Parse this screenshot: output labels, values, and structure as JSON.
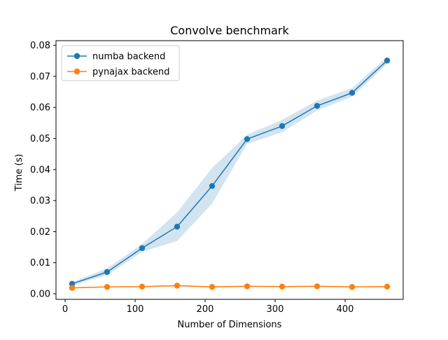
{
  "chart_data": {
    "type": "line",
    "title": "Convolve benchmark",
    "xlabel": "Number of Dimensions",
    "ylabel": "Time (s)",
    "xlim": [
      -13,
      483
    ],
    "ylim": [
      -0.0018,
      0.0815
    ],
    "x_ticks": [
      0,
      100,
      200,
      300,
      400
    ],
    "y_ticks": [
      0.0,
      0.01,
      0.02,
      0.03,
      0.04,
      0.05,
      0.06,
      0.07,
      0.08
    ],
    "y_tick_labels": [
      "0.00",
      "0.01",
      "0.02",
      "0.03",
      "0.04",
      "0.05",
      "0.06",
      "0.07",
      "0.08"
    ],
    "x": [
      10,
      60,
      110,
      160,
      210,
      260,
      310,
      360,
      410,
      460
    ],
    "series": [
      {
        "name": "numba backend",
        "color": "#1f77b4",
        "values": [
          0.0032,
          0.007,
          0.0147,
          0.0216,
          0.0347,
          0.0498,
          0.054,
          0.0605,
          0.0647,
          0.0751
        ],
        "band_low": [
          0.0027,
          0.006,
          0.0135,
          0.017,
          0.029,
          0.0483,
          0.052,
          0.059,
          0.0635,
          0.074
        ],
        "band_high": [
          0.0037,
          0.0082,
          0.016,
          0.0262,
          0.0405,
          0.0512,
          0.056,
          0.0622,
          0.0662,
          0.0763
        ]
      },
      {
        "name": "pynajax backend",
        "color": "#ff7f0e",
        "values": [
          0.0019,
          0.0022,
          0.0023,
          0.0026,
          0.0022,
          0.0024,
          0.0023,
          0.0024,
          0.0022,
          0.0023
        ],
        "band_low": [
          0.0017,
          0.002,
          0.0021,
          0.0023,
          0.002,
          0.0022,
          0.0021,
          0.0022,
          0.002,
          0.0021
        ],
        "band_high": [
          0.0021,
          0.0024,
          0.0025,
          0.0029,
          0.0024,
          0.0027,
          0.0025,
          0.0027,
          0.0024,
          0.0025
        ]
      }
    ],
    "legend": {
      "position": "upper-left"
    },
    "grid": false
  }
}
